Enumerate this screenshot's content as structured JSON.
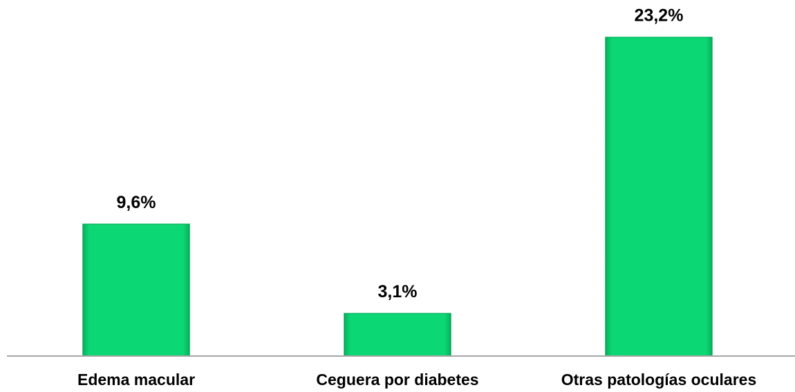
{
  "chart_data": {
    "type": "bar",
    "categories": [
      "Edema macular",
      "Ceguera por diabetes",
      "Otras patologías oculares"
    ],
    "values": [
      9.6,
      3.1,
      23.2
    ],
    "value_labels": [
      "9,6%",
      "3,1%",
      "23,2%"
    ],
    "color": "#0bd874"
  }
}
